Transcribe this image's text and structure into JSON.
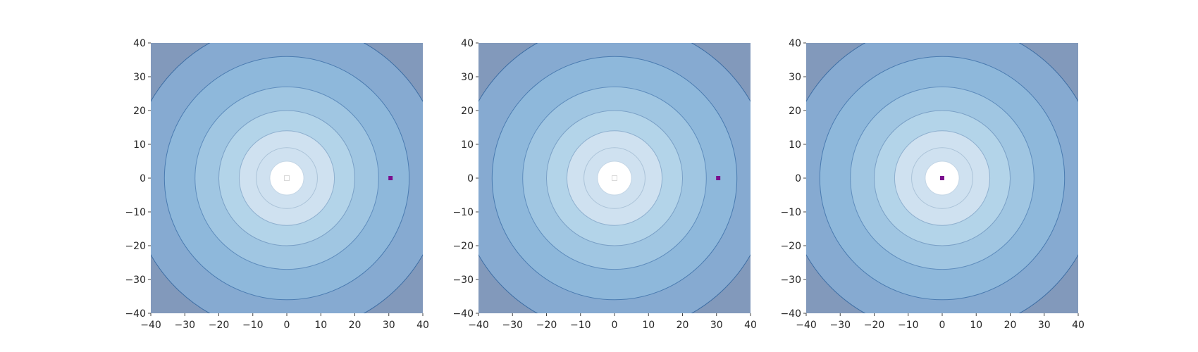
{
  "chart_data": [
    {
      "type": "contour",
      "title": "",
      "xlabel": "",
      "ylabel": "",
      "xlim": [
        -40,
        40
      ],
      "ylim": [
        -40,
        40
      ],
      "xticks": [
        -40,
        -30,
        -20,
        -10,
        0,
        10,
        20,
        30,
        40
      ],
      "yticks": [
        -40,
        -30,
        -20,
        -10,
        0,
        10,
        20,
        30,
        40
      ],
      "contour_center": [
        0,
        0
      ],
      "contour_radii": [
        5,
        9,
        14,
        20,
        27,
        36,
        46
      ],
      "fill_colors": [
        "#ffffff",
        "#cfe1f0",
        "#cfe1f0",
        "#b3d4e9",
        "#a0c6e2",
        "#8eb8db",
        "#86aad1",
        "#8299bb"
      ],
      "line_colors": [
        "#c4d6e6",
        "#abc3d8",
        "#8fb0cf",
        "#7aa0c6",
        "#5f8dbd",
        "#4a7bb0",
        "#3e6ea4"
      ],
      "markers": [
        {
          "x": 0,
          "y": 0,
          "style": "hollow-square",
          "color": "#d9d9d9"
        },
        {
          "x": 30.5,
          "y": 0,
          "style": "filled-square",
          "color": "#7b0f8e"
        }
      ]
    },
    {
      "type": "contour",
      "title": "",
      "xlabel": "",
      "ylabel": "",
      "xlim": [
        -40,
        40
      ],
      "ylim": [
        -40,
        40
      ],
      "xticks": [
        -40,
        -30,
        -20,
        -10,
        0,
        10,
        20,
        30,
        40
      ],
      "yticks": [
        -40,
        -30,
        -20,
        -10,
        0,
        10,
        20,
        30,
        40
      ],
      "contour_center": [
        0,
        0
      ],
      "contour_radii": [
        5,
        9,
        14,
        20,
        27,
        36,
        46
      ],
      "fill_colors": [
        "#ffffff",
        "#cfe1f0",
        "#cfe1f0",
        "#b3d4e9",
        "#a0c6e2",
        "#8eb8db",
        "#86aad1",
        "#8299bb"
      ],
      "line_colors": [
        "#c4d6e6",
        "#abc3d8",
        "#8fb0cf",
        "#7aa0c6",
        "#5f8dbd",
        "#4a7bb0",
        "#3e6ea4"
      ],
      "markers": [
        {
          "x": 0,
          "y": 0,
          "style": "hollow-square",
          "color": "#d9d9d9"
        },
        {
          "x": 30.5,
          "y": 0,
          "style": "filled-square",
          "color": "#7b0f8e"
        }
      ]
    },
    {
      "type": "contour",
      "title": "",
      "xlabel": "",
      "ylabel": "",
      "xlim": [
        -40,
        40
      ],
      "ylim": [
        -40,
        40
      ],
      "xticks": [
        -40,
        -30,
        -20,
        -10,
        0,
        10,
        20,
        30,
        40
      ],
      "yticks": [
        -40,
        -30,
        -20,
        -10,
        0,
        10,
        20,
        30,
        40
      ],
      "contour_center": [
        0,
        0
      ],
      "contour_radii": [
        5,
        9,
        14,
        20,
        27,
        36,
        46
      ],
      "fill_colors": [
        "#ffffff",
        "#cfe1f0",
        "#cfe1f0",
        "#b3d4e9",
        "#a0c6e2",
        "#8eb8db",
        "#86aad1",
        "#8299bb"
      ],
      "line_colors": [
        "#c4d6e6",
        "#abc3d8",
        "#8fb0cf",
        "#7aa0c6",
        "#5f8dbd",
        "#4a7bb0",
        "#3e6ea4"
      ],
      "markers": [
        {
          "x": 0,
          "y": 0,
          "style": "filled-square",
          "color": "#7b0f8e"
        }
      ]
    }
  ]
}
